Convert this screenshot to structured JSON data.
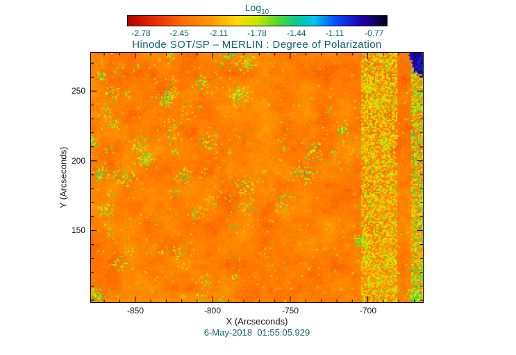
{
  "styles": {
    "heading_color": "#0d6470",
    "axis_color": "#16161d",
    "background": "#ffffff",
    "frame_color": "#000000"
  },
  "chart_data": {
    "type": "heatmap",
    "title": "Hinode SOT/SP – MERLIN : Degree of Polarization",
    "xlabel": "X (Arcseconds)",
    "ylabel": "Y (Arcseconds)",
    "timestamp": "6-May-2018  01:55:05.929",
    "xlim": [
      -879,
      -664
    ],
    "ylim": [
      98,
      278
    ],
    "x_major_ticks": [
      -850,
      -800,
      -750,
      -700
    ],
    "y_major_ticks": [
      150,
      200,
      250
    ],
    "minor_tick_step": 10,
    "grid": false,
    "colorbar": {
      "label_main": "Log",
      "label_sub": "10",
      "tick_labels": [
        "-2.78",
        "-2.45",
        "-2.11",
        "-1.78",
        "-1.44",
        "-1.11",
        "-0.77"
      ],
      "tick_values": [
        -2.78,
        -2.45,
        -2.11,
        -1.78,
        -1.44,
        -1.11,
        -0.77
      ],
      "range": [
        -2.9,
        -0.655
      ],
      "orientation": "horizontal",
      "position": "top"
    },
    "palette_stops": [
      {
        "p": 0.0,
        "c": "#b40000"
      },
      {
        "p": 0.1,
        "c": "#e82800"
      },
      {
        "p": 0.22,
        "c": "#ff7000"
      },
      {
        "p": 0.32,
        "c": "#ff9800"
      },
      {
        "p": 0.42,
        "c": "#ffd800"
      },
      {
        "p": 0.5,
        "c": "#c8e800"
      },
      {
        "p": 0.58,
        "c": "#50d830"
      },
      {
        "p": 0.66,
        "c": "#00c8a0"
      },
      {
        "p": 0.72,
        "c": "#00c8e8"
      },
      {
        "p": 0.8,
        "c": "#0050ff"
      },
      {
        "p": 0.9,
        "c": "#2000b0"
      },
      {
        "p": 1.0,
        "c": "#000018"
      }
    ],
    "features": {
      "background": {
        "description": "granular orange/red-orange field covering most of the map",
        "log10_level": [
          -2.55,
          -2.08
        ]
      },
      "speckles": {
        "description": "scattered green speckle clusters, densest in the left half and upper-left quadrant",
        "log10_level": [
          -1.95,
          -1.55
        ],
        "base_fraction": 0.012
      },
      "vertical_band": {
        "x_range": [
          -704,
          -681
        ],
        "description": "noisy yellow-green vertical band of enhanced polarization",
        "log10_level": [
          -2.1,
          -1.65
        ]
      },
      "right_edge_column": {
        "x_range": [
          -672,
          -664
        ],
        "description": "green/cyan noisy column along the right edge",
        "log10_level": [
          -1.95,
          -1.55
        ]
      },
      "blue_patch": {
        "x_range": [
          -673,
          -664
        ],
        "y_range": [
          261,
          278
        ],
        "description": "dark blue high-polarization patch in the top-right corner",
        "log10_level": [
          -1.0,
          -0.78
        ]
      }
    }
  }
}
